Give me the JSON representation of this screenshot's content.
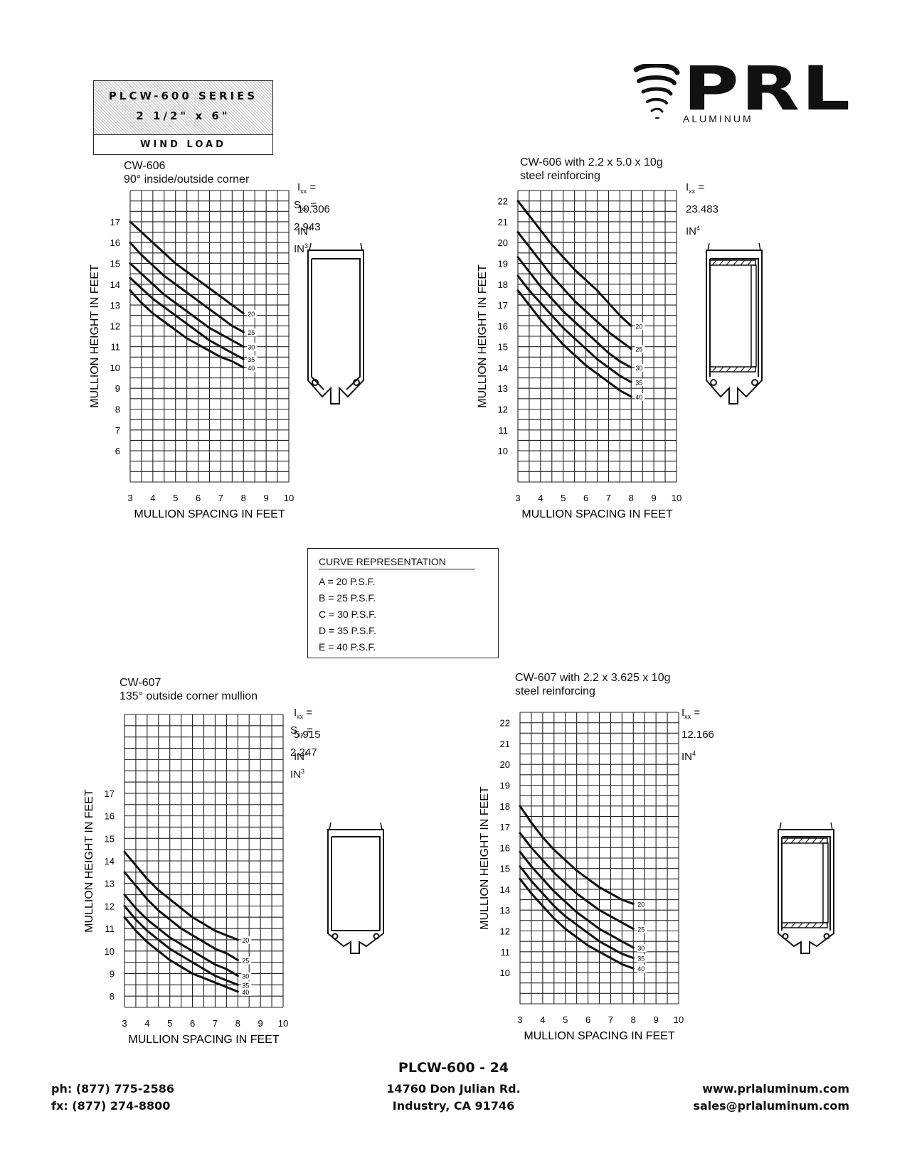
{
  "series": {
    "title": "PLCW-600 SERIES",
    "size": "2 1/2\" x 6\"",
    "subtitle": "WIND LOAD"
  },
  "logo": {
    "name": "PRL",
    "sub": "ALUMINUM"
  },
  "legend": {
    "title": "CURVE REPRESENTATION",
    "rows": [
      "A  =  20  P.S.F.",
      "B  =  25  P.S.F.",
      "C  =  30  P.S.F.",
      "D  =  35  P.S.F.",
      "E  =  40  P.S.F."
    ]
  },
  "footer": {
    "page": "PLCW-600  - 24",
    "phone": "ph: (877) 775-2586",
    "fax": "fx: (877) 274-8800",
    "address1": "14760 Don Julian Rd.",
    "address2": "Industry, CA 91746",
    "web": "www.prlaluminum.com",
    "email": "sales@prlaluminum.com"
  },
  "chart_data": [
    {
      "type": "line",
      "title": "CW-606",
      "subtitle": "90° inside/outside corner",
      "props": {
        "ixx_label": "I",
        "ixx_sub": "xx",
        "ixx_value": " = 10.306 IN",
        "ixx_exp": "4",
        "sxx_label": "S",
        "sxx_sub": "xx",
        "sxx_value": " = 2.943 IN",
        "sxx_exp": "3"
      },
      "xlabel": "MULLION SPACING IN FEET",
      "ylabel": "MULLION HEIGHT IN FEET",
      "xlim": [
        3,
        10
      ],
      "ylim": [
        4.5,
        18.5
      ],
      "xticks": [
        3,
        4,
        5,
        6,
        7,
        8,
        9,
        10
      ],
      "yticks": [
        6,
        7,
        8,
        9,
        10,
        11,
        12,
        13,
        14,
        15,
        16,
        17
      ],
      "x": [
        3,
        3.5,
        4,
        4.5,
        5,
        5.5,
        6,
        6.5,
        7,
        7.5,
        8
      ],
      "series": [
        {
          "name": "20",
          "values": [
            17.0,
            16.5,
            16.0,
            15.5,
            15.0,
            14.6,
            14.2,
            13.8,
            13.4,
            13.0,
            12.6
          ]
        },
        {
          "name": "25",
          "values": [
            16.0,
            15.4,
            14.9,
            14.4,
            14.0,
            13.6,
            13.2,
            12.8,
            12.4,
            12.0,
            11.7
          ]
        },
        {
          "name": "30",
          "values": [
            15.0,
            14.5,
            14.0,
            13.5,
            13.1,
            12.7,
            12.3,
            11.9,
            11.6,
            11.3,
            11.0
          ]
        },
        {
          "name": "35",
          "values": [
            14.3,
            13.8,
            13.3,
            12.9,
            12.5,
            12.1,
            11.7,
            11.3,
            11.0,
            10.7,
            10.4
          ]
        },
        {
          "name": "40",
          "values": [
            13.7,
            13.1,
            12.6,
            12.2,
            11.8,
            11.4,
            11.1,
            10.8,
            10.5,
            10.3,
            10.0
          ]
        }
      ]
    },
    {
      "type": "line",
      "title": "CW-606 with 2.2 x 5.0 x 10g",
      "subtitle": "steel reinforcing",
      "props": {
        "ixx_label": "I",
        "ixx_sub": "xx",
        "ixx_value": " = 23.483 IN",
        "ixx_exp": "4"
      },
      "xlabel": "MULLION SPACING IN FEET",
      "ylabel": "MULLION HEIGHT IN FEET",
      "xlim": [
        3,
        10
      ],
      "ylim": [
        8.5,
        22.5
      ],
      "xticks": [
        3,
        4,
        5,
        6,
        7,
        8,
        9,
        10
      ],
      "yticks": [
        10,
        11,
        12,
        13,
        14,
        15,
        16,
        17,
        18,
        19,
        20,
        21,
        22
      ],
      "x": [
        3,
        3.5,
        4,
        4.5,
        5,
        5.5,
        6,
        6.5,
        7,
        7.5,
        8
      ],
      "series": [
        {
          "name": "20",
          "values": [
            22.0,
            21.3,
            20.6,
            19.9,
            19.3,
            18.7,
            18.2,
            17.7,
            17.1,
            16.5,
            16.0
          ]
        },
        {
          "name": "25",
          "values": [
            20.5,
            19.8,
            19.1,
            18.4,
            17.8,
            17.2,
            16.7,
            16.2,
            15.7,
            15.3,
            14.9
          ]
        },
        {
          "name": "30",
          "values": [
            19.3,
            18.6,
            17.9,
            17.3,
            16.7,
            16.2,
            15.7,
            15.2,
            14.7,
            14.3,
            14.0
          ]
        },
        {
          "name": "35",
          "values": [
            18.4,
            17.7,
            17.1,
            16.5,
            15.9,
            15.4,
            14.9,
            14.4,
            14.0,
            13.6,
            13.3
          ]
        },
        {
          "name": "40",
          "values": [
            17.7,
            17.0,
            16.3,
            15.7,
            15.1,
            14.6,
            14.1,
            13.7,
            13.3,
            12.9,
            12.6
          ]
        }
      ]
    },
    {
      "type": "line",
      "title": "CW-607",
      "subtitle": "135° outside corner mullion",
      "props": {
        "ixx_label": "I",
        "ixx_sub": "xx",
        "ixx_value": " = 5.915 IN",
        "ixx_exp": "4",
        "sxx_label": "S",
        "sxx_sub": "xx",
        "sxx_value": " = 2.247 IN",
        "sxx_exp": "3"
      },
      "xlabel": "MULLION SPACING IN FEET",
      "ylabel": "MULLION HEIGHT IN FEET",
      "xlim": [
        3,
        10
      ],
      "ylim": [
        7.5,
        20.5
      ],
      "xticks": [
        3,
        4,
        5,
        6,
        7,
        8,
        9,
        10
      ],
      "yticks": [
        8,
        9,
        10,
        11,
        12,
        13,
        14,
        15,
        16,
        17
      ],
      "x": [
        3,
        3.5,
        4,
        4.5,
        5,
        5.5,
        6,
        6.5,
        7,
        7.5,
        8
      ],
      "series": [
        {
          "name": "20",
          "values": [
            14.4,
            13.8,
            13.2,
            12.7,
            12.3,
            11.9,
            11.5,
            11.2,
            10.9,
            10.7,
            10.5
          ]
        },
        {
          "name": "25",
          "values": [
            13.5,
            12.9,
            12.3,
            11.8,
            11.4,
            11.0,
            10.7,
            10.4,
            10.1,
            9.9,
            9.6
          ]
        },
        {
          "name": "30",
          "values": [
            12.5,
            11.9,
            11.4,
            11.0,
            10.6,
            10.3,
            10.0,
            9.7,
            9.4,
            9.2,
            8.9
          ]
        },
        {
          "name": "35",
          "values": [
            12.0,
            11.4,
            10.9,
            10.5,
            10.1,
            9.8,
            9.5,
            9.2,
            8.9,
            8.7,
            8.5
          ]
        },
        {
          "name": "40",
          "values": [
            11.5,
            10.9,
            10.4,
            10.0,
            9.6,
            9.3,
            9.0,
            8.8,
            8.6,
            8.4,
            8.2
          ]
        }
      ]
    },
    {
      "type": "line",
      "title": "CW-607 with 2.2 x 3.625 x 10g",
      "subtitle": "steel reinforcing",
      "props": {
        "ixx_label": "I",
        "ixx_sub": "xx",
        "ixx_value": " = 12.166 IN",
        "ixx_exp": "4"
      },
      "xlabel": "MULLION SPACING IN FEET",
      "ylabel": "MULLION HEIGHT IN FEET",
      "xlim": [
        3,
        10
      ],
      "ylim": [
        8.5,
        22.5
      ],
      "xticks": [
        3,
        4,
        5,
        6,
        7,
        8,
        9,
        10
      ],
      "yticks": [
        10,
        11,
        12,
        13,
        14,
        15,
        16,
        17,
        18,
        19,
        20,
        21,
        22
      ],
      "x": [
        3,
        3.5,
        4,
        4.5,
        5,
        5.5,
        6,
        6.5,
        7,
        7.5,
        8
      ],
      "series": [
        {
          "name": "20",
          "values": [
            18.0,
            17.2,
            16.5,
            15.9,
            15.4,
            14.9,
            14.5,
            14.1,
            13.8,
            13.5,
            13.3
          ]
        },
        {
          "name": "25",
          "values": [
            16.7,
            16.0,
            15.4,
            14.8,
            14.3,
            13.8,
            13.4,
            13.0,
            12.7,
            12.4,
            12.1
          ]
        },
        {
          "name": "30",
          "values": [
            15.8,
            15.1,
            14.5,
            13.9,
            13.4,
            12.9,
            12.5,
            12.1,
            11.8,
            11.5,
            11.2
          ]
        },
        {
          "name": "35",
          "values": [
            15.1,
            14.4,
            13.8,
            13.2,
            12.7,
            12.3,
            11.9,
            11.5,
            11.2,
            10.9,
            10.7
          ]
        },
        {
          "name": "40",
          "values": [
            14.5,
            13.8,
            13.2,
            12.6,
            12.1,
            11.7,
            11.3,
            11.0,
            10.7,
            10.4,
            10.2
          ]
        }
      ]
    }
  ]
}
